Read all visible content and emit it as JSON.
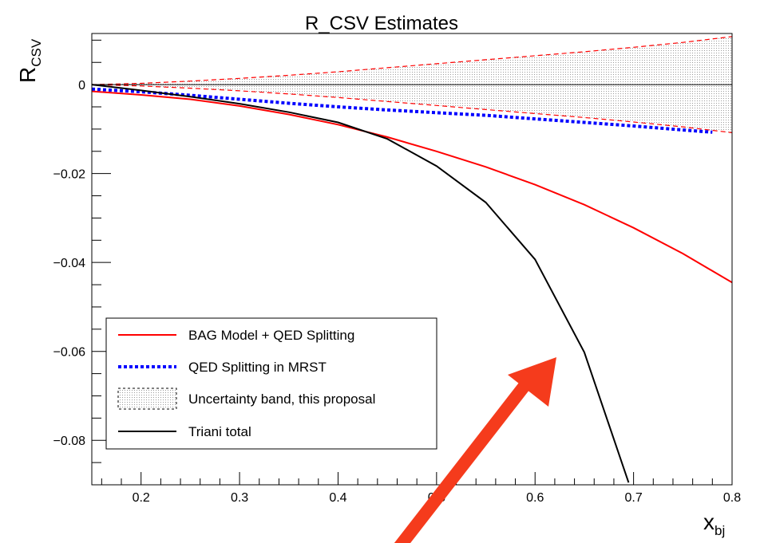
{
  "chart_data": {
    "type": "line",
    "title": "R_CSV Estimates",
    "ylabel": {
      "main": "R",
      "sub": "CSV"
    },
    "xlabel": {
      "main": "x",
      "sub": "bj"
    },
    "xlim": [
      0.15,
      0.8
    ],
    "ylim": [
      -0.09,
      0.0115
    ],
    "x_ticks": [
      0.2,
      0.3,
      0.4,
      0.5,
      0.6,
      0.7,
      0.8
    ],
    "x_tick_labels": [
      "0.2",
      "0.3",
      "0.4",
      "0.5",
      "0.6",
      "0.7",
      "0.8"
    ],
    "y_ticks": [
      0,
      -0.02,
      -0.04,
      -0.06,
      -0.08
    ],
    "y_tick_labels": [
      "0",
      "−0.02",
      "−0.04",
      "−0.06",
      "−0.08"
    ],
    "zero_line": true,
    "grid": false,
    "legend_position": "bottom-left",
    "series": [
      {
        "name": "BAG Model + QED Splitting",
        "style": "solid",
        "color": "#ff0000",
        "x": [
          0.15,
          0.2,
          0.25,
          0.3,
          0.35,
          0.4,
          0.45,
          0.5,
          0.55,
          0.6,
          0.65,
          0.7,
          0.75,
          0.8
        ],
        "y": [
          -0.0015,
          -0.0023,
          -0.0033,
          -0.0048,
          -0.0067,
          -0.009,
          -0.0118,
          -0.015,
          -0.0185,
          -0.0225,
          -0.027,
          -0.0322,
          -0.038,
          -0.0445
        ]
      },
      {
        "name": "QED Splitting in MRST",
        "style": "dotted",
        "color": "#0000ff",
        "x": [
          0.15,
          0.2,
          0.25,
          0.3,
          0.35,
          0.4,
          0.45,
          0.5,
          0.55,
          0.6,
          0.65,
          0.7,
          0.75,
          0.78
        ],
        "y": [
          -0.001,
          -0.0016,
          -0.0024,
          -0.0033,
          -0.0042,
          -0.005,
          -0.0057,
          -0.0063,
          -0.0069,
          -0.0077,
          -0.0085,
          -0.0093,
          -0.0102,
          -0.0107
        ]
      },
      {
        "name": "Uncertainty band, this proposal",
        "style": "band",
        "color": "#ff0000",
        "x": [
          0.15,
          0.2,
          0.25,
          0.3,
          0.35,
          0.4,
          0.45,
          0.5,
          0.55,
          0.6,
          0.65,
          0.7,
          0.75,
          0.8
        ],
        "upper": [
          0.0,
          0.0003,
          0.0008,
          0.0014,
          0.0021,
          0.0029,
          0.0038,
          0.0047,
          0.0056,
          0.0065,
          0.0074,
          0.0084,
          0.0095,
          0.0108
        ],
        "lower": [
          0.0,
          -0.0003,
          -0.0008,
          -0.0014,
          -0.0021,
          -0.0029,
          -0.0038,
          -0.0047,
          -0.0056,
          -0.0065,
          -0.0074,
          -0.0084,
          -0.0095,
          -0.0108
        ]
      },
      {
        "name": "Triani total",
        "style": "solid",
        "color": "#000000",
        "x": [
          0.15,
          0.2,
          0.25,
          0.3,
          0.35,
          0.4,
          0.45,
          0.5,
          0.55,
          0.6,
          0.65,
          0.695
        ],
        "y": [
          0.0,
          -0.0013,
          -0.0027,
          -0.0043,
          -0.0062,
          -0.0085,
          -0.0122,
          -0.0183,
          -0.0265,
          -0.0393,
          -0.0602,
          -0.0895
        ]
      }
    ]
  },
  "annotation": {
    "type": "arrow",
    "color": "#f53b1c"
  }
}
